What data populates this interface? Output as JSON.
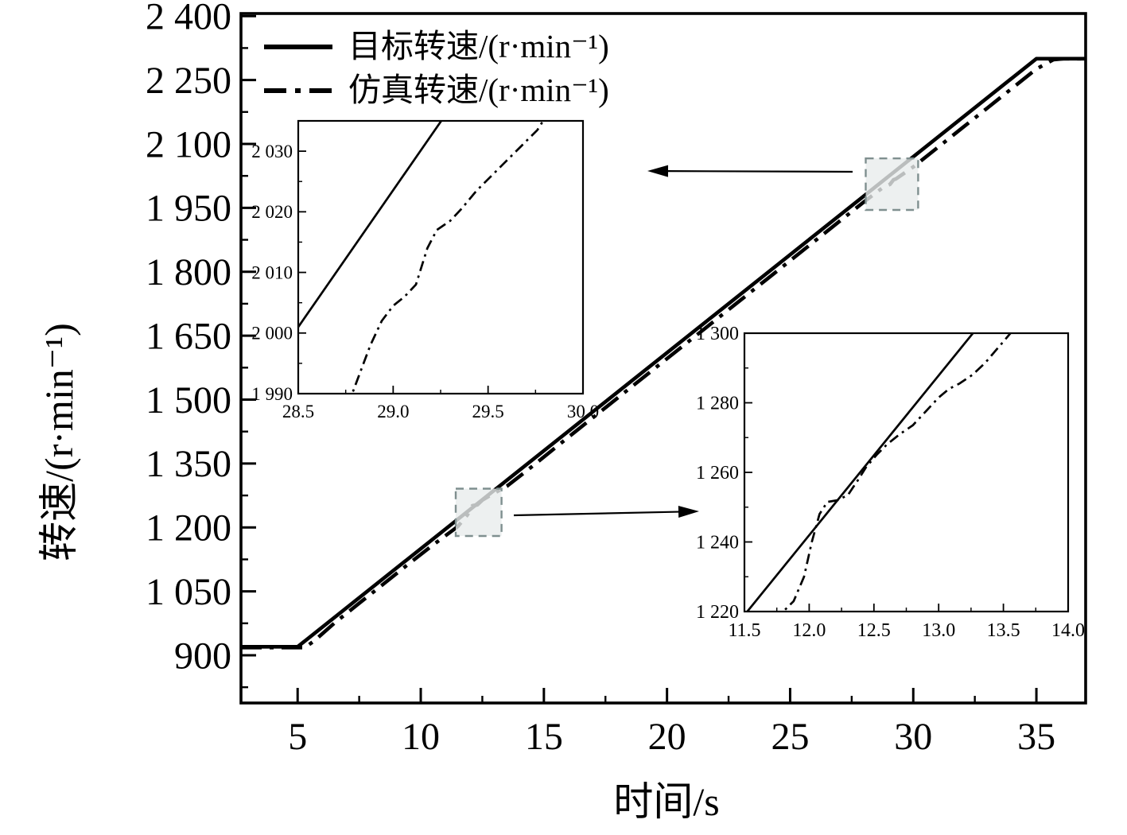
{
  "figure": {
    "background": "#ffffff",
    "line_color": "#000000",
    "zoom_box_fill": "#e8ecec",
    "zoom_box_border": "#7f8f8f"
  },
  "legend": {
    "items": [
      {
        "id": "target",
        "label": "目标转速/(r·min⁻¹)",
        "line_style": "solid"
      },
      {
        "id": "simulation",
        "label": "仿真转速/(r·min⁻¹)",
        "line_style": "dash-dot"
      }
    ]
  },
  "axes": {
    "x_title": "时间/s",
    "y_title": "转速/(r·min⁻¹)"
  },
  "chart_data": [
    {
      "plot_id": "main",
      "type": "line",
      "title": "",
      "xlabel": "时间/s",
      "ylabel": "转速/(r·min⁻¹)",
      "xlim": [
        2.7,
        37
      ],
      "ylim": [
        788,
        2406
      ],
      "grid": false,
      "legend_position": "upper-left-inside",
      "x_major_ticks": [
        5,
        10,
        15,
        20,
        25,
        30,
        35
      ],
      "x_tick_labels": [
        "5",
        "10",
        "15",
        "20",
        "25",
        "30",
        "35"
      ],
      "x_minor_ticks": [
        7.5,
        12.5,
        17.5,
        22.5,
        27.5,
        32.5
      ],
      "y_major_ticks": [
        900,
        1050,
        1200,
        1350,
        1500,
        1650,
        1800,
        1950,
        2100,
        2250,
        2400
      ],
      "y_tick_labels": [
        "900",
        "1 050",
        "1 200",
        "1 350",
        "1 500",
        "1 650",
        "1 800",
        "1 950",
        "2 100",
        "2 250",
        "2 400"
      ],
      "y_minor_ticks": [
        825,
        975,
        1125,
        1275,
        1425,
        1575,
        1725,
        1875,
        2025,
        2175,
        2325
      ],
      "series": [
        {
          "id": "target",
          "name": "目标转速",
          "style": "solid",
          "points": [
            [
              2.7,
              920
            ],
            [
              5.0,
              920
            ],
            [
              35.0,
              2300
            ],
            [
              37.0,
              2300
            ]
          ]
        },
        {
          "id": "simulation",
          "name": "仿真转速",
          "style": "dashdot",
          "points": [
            [
              2.7,
              918
            ],
            [
              5.3,
              918
            ],
            [
              5.7,
              935
            ],
            [
              6.5,
              976
            ],
            [
              7.5,
              1022
            ],
            [
              8.5,
              1068
            ],
            [
              9.5,
              1114
            ],
            [
              10.5,
              1159
            ],
            [
              11.5,
              1202
            ],
            [
              11.9,
              1230
            ],
            [
              12.1,
              1251
            ],
            [
              12.3,
              1253
            ],
            [
              12.5,
              1264
            ],
            [
              13.0,
              1281
            ],
            [
              13.5,
              1297
            ],
            [
              14.5,
              1342
            ],
            [
              16,
              1412
            ],
            [
              18,
              1504
            ],
            [
              20,
              1596
            ],
            [
              22,
              1688
            ],
            [
              24,
              1780
            ],
            [
              26,
              1872
            ],
            [
              28,
              1964
            ],
            [
              28.8,
              1999
            ],
            [
              29.05,
              2005
            ],
            [
              29.2,
              2016
            ],
            [
              29.3,
              2018
            ],
            [
              30,
              2046
            ],
            [
              31,
              2092
            ],
            [
              32,
              2138
            ],
            [
              33,
              2184
            ],
            [
              34,
              2230
            ],
            [
              35,
              2276
            ],
            [
              35.7,
              2298
            ],
            [
              36.1,
              2300
            ],
            [
              37,
              2300
            ]
          ]
        }
      ],
      "zoom_boxes": [
        {
          "x": [
            28.07,
            30.2
          ],
          "y": [
            1945,
            2066
          ],
          "links_to": "inset_upper"
        },
        {
          "x": [
            11.42,
            13.28
          ],
          "y": [
            1180,
            1291
          ],
          "links_to": "inset_lower"
        }
      ]
    },
    {
      "plot_id": "inset_upper",
      "type": "line",
      "title": "",
      "xlabel": "",
      "ylabel": "",
      "xlim": [
        28.5,
        30.0
      ],
      "ylim": [
        1990,
        2035
      ],
      "grid": false,
      "x_major_ticks": [
        28.5,
        29.0,
        29.5,
        30.0
      ],
      "x_tick_labels": [
        "28.5",
        "29.0",
        "29.5",
        "30.0"
      ],
      "x_minor_ticks": [
        28.75,
        29.25,
        29.75
      ],
      "y_major_ticks": [
        1990,
        2000,
        2010,
        2020,
        2030
      ],
      "y_tick_labels": [
        "1 990",
        "2 000",
        "2 010",
        "2 020",
        "2 030"
      ],
      "y_minor_ticks": [
        1995,
        2005,
        2015,
        2025
      ],
      "series": [
        {
          "id": "target",
          "name": "目标转速",
          "style": "solid",
          "points": [
            [
              28.5,
              2001
            ],
            [
              29.32,
              2038
            ]
          ]
        },
        {
          "id": "simulation",
          "name": "仿真转速",
          "style": "dashdot",
          "points": [
            [
              28.76,
              1988
            ],
            [
              28.82,
              1993
            ],
            [
              28.88,
              1998
            ],
            [
              28.94,
              2002
            ],
            [
              29.0,
              2004.5
            ],
            [
              29.06,
              2006
            ],
            [
              29.12,
              2008
            ],
            [
              29.18,
              2014
            ],
            [
              29.23,
              2017
            ],
            [
              29.3,
              2018.5
            ],
            [
              29.36,
              2020.5
            ],
            [
              29.44,
              2023.5
            ],
            [
              29.52,
              2026
            ],
            [
              29.6,
              2028.5
            ],
            [
              29.68,
              2031
            ],
            [
              29.76,
              2033.5
            ],
            [
              29.83,
              2037
            ]
          ]
        }
      ]
    },
    {
      "plot_id": "inset_lower",
      "type": "line",
      "title": "",
      "xlabel": "",
      "ylabel": "",
      "xlim": [
        11.5,
        14.0
      ],
      "ylim": [
        1220,
        1300
      ],
      "grid": false,
      "x_major_ticks": [
        11.5,
        12.0,
        12.5,
        13.0,
        13.5,
        14.0
      ],
      "x_tick_labels": [
        "11.5",
        "12.0",
        "12.5",
        "13.0",
        "13.5",
        "14.0"
      ],
      "x_minor_ticks": [
        11.75,
        12.25,
        12.75,
        13.25,
        13.75
      ],
      "y_major_ticks": [
        1220,
        1240,
        1260,
        1280,
        1300
      ],
      "y_tick_labels": [
        "1 220",
        "1 240",
        "1 260",
        "1 280",
        "1 300"
      ],
      "y_minor_ticks": [
        1230,
        1250,
        1270,
        1290
      ],
      "series": [
        {
          "id": "target",
          "name": "目标转速",
          "style": "solid",
          "points": [
            [
              11.5,
              1219
            ],
            [
              13.33,
              1303
            ]
          ]
        },
        {
          "id": "simulation",
          "name": "仿真转速",
          "style": "dashdot",
          "points": [
            [
              11.72,
              1218
            ],
            [
              11.8,
              1220
            ],
            [
              11.88,
              1223
            ],
            [
              11.96,
              1230
            ],
            [
              12.02,
              1240
            ],
            [
              12.08,
              1248
            ],
            [
              12.14,
              1251.5
            ],
            [
              12.22,
              1252
            ],
            [
              12.3,
              1253.5
            ],
            [
              12.38,
              1258
            ],
            [
              12.44,
              1261.5
            ],
            [
              12.52,
              1265
            ],
            [
              12.6,
              1268
            ],
            [
              12.7,
              1271
            ],
            [
              12.8,
              1273.5
            ],
            [
              12.9,
              1277.5
            ],
            [
              13.0,
              1281.5
            ],
            [
              13.08,
              1284
            ],
            [
              13.16,
              1285.5
            ],
            [
              13.26,
              1288
            ],
            [
              13.36,
              1291.5
            ],
            [
              13.44,
              1295
            ],
            [
              13.52,
              1298.5
            ],
            [
              13.6,
              1302
            ]
          ]
        }
      ]
    }
  ]
}
